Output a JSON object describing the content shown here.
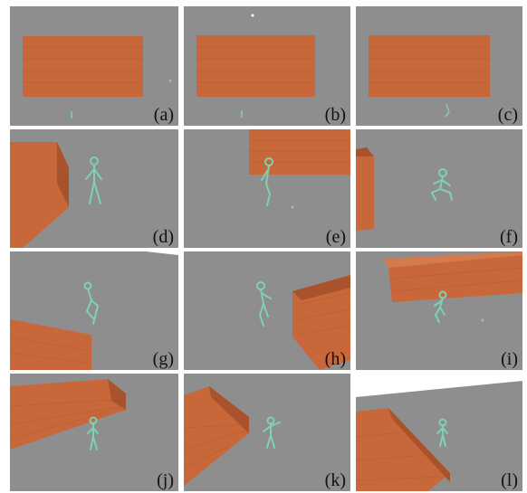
{
  "figure": {
    "panels": [
      {
        "id": "a",
        "label": "(a)"
      },
      {
        "id": "b",
        "label": "(b)"
      },
      {
        "id": "c",
        "label": "(c)"
      },
      {
        "id": "d",
        "label": "(d)"
      },
      {
        "id": "e",
        "label": "(e)"
      },
      {
        "id": "f",
        "label": "(f)"
      },
      {
        "id": "g",
        "label": "(g)"
      },
      {
        "id": "h",
        "label": "(h)"
      },
      {
        "id": "i",
        "label": "(i)"
      },
      {
        "id": "j",
        "label": "(j)"
      },
      {
        "id": "k",
        "label": "(k)"
      },
      {
        "id": "l",
        "label": "(l)"
      }
    ],
    "colors": {
      "ground": "#8e8e8e",
      "sky": "#ffffff",
      "wall": "#c8683a",
      "wall_dark": "#a9532c",
      "mannequin": "#7fd1b2"
    }
  }
}
